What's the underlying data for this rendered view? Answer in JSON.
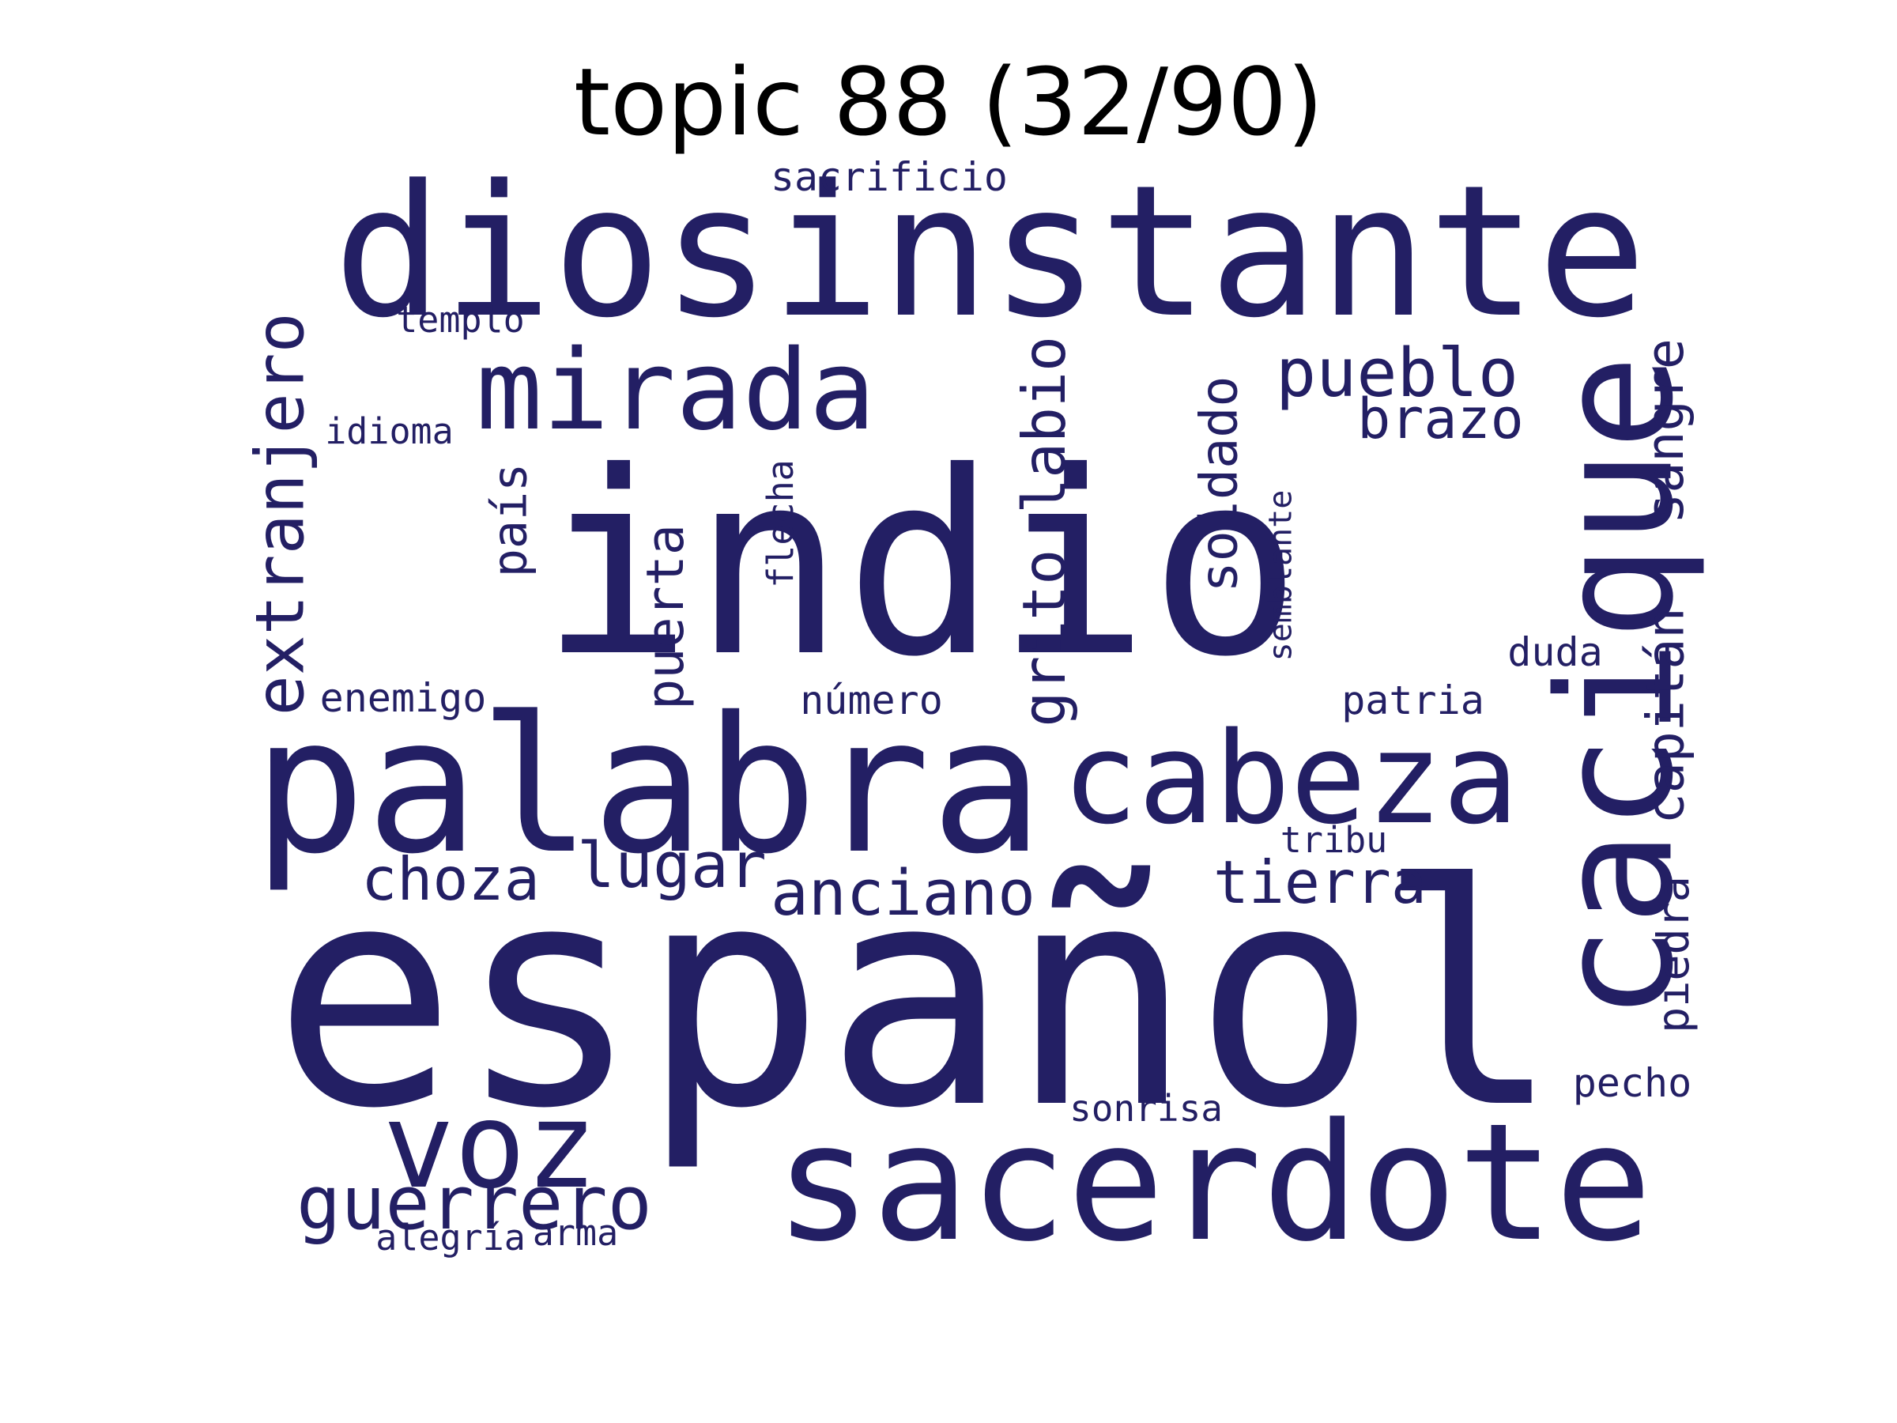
{
  "title": "topic 88 (32/90)",
  "word_color": "#231f64",
  "words": [
    {
      "text": "indio",
      "rotated": false
    },
    {
      "text": "español",
      "rotated": false
    },
    {
      "text": "diosinstante",
      "rotated": false
    },
    {
      "text": "palabra",
      "rotated": false
    },
    {
      "text": "cabeza",
      "rotated": false
    },
    {
      "text": "sacerdote",
      "rotated": false
    },
    {
      "text": "cacique",
      "rotated": true
    },
    {
      "text": "mirada",
      "rotated": false
    },
    {
      "text": "voz",
      "rotated": false
    },
    {
      "text": "guerrero",
      "rotated": false
    },
    {
      "text": "pueblo",
      "rotated": false
    },
    {
      "text": "brazo",
      "rotated": false
    },
    {
      "text": "lugar",
      "rotated": false
    },
    {
      "text": "choza",
      "rotated": false
    },
    {
      "text": "anciano",
      "rotated": false
    },
    {
      "text": "tierra",
      "rotated": false
    },
    {
      "text": "extranjero",
      "rotated": true
    },
    {
      "text": "soldado",
      "rotated": true
    },
    {
      "text": "grito labio",
      "rotated": true
    },
    {
      "text": "puerta",
      "rotated": true
    },
    {
      "text": "país",
      "rotated": true
    },
    {
      "text": "sangre",
      "rotated": true
    },
    {
      "text": "capitán",
      "rotated": true
    },
    {
      "text": "piedra",
      "rotated": true
    },
    {
      "text": "semblante",
      "rotated": true
    },
    {
      "text": "flecha",
      "rotated": true
    },
    {
      "text": "sacrificio",
      "rotated": false
    },
    {
      "text": "templo",
      "rotated": false
    },
    {
      "text": "idioma",
      "rotated": false
    },
    {
      "text": "enemigo",
      "rotated": false
    },
    {
      "text": "número",
      "rotated": false
    },
    {
      "text": "patria",
      "rotated": false
    },
    {
      "text": "duda",
      "rotated": false
    },
    {
      "text": "tribu",
      "rotated": false
    },
    {
      "text": "pecho",
      "rotated": false
    },
    {
      "text": "sonrisa",
      "rotated": false
    },
    {
      "text": "alegría",
      "rotated": false
    },
    {
      "text": "arma",
      "rotated": false
    }
  ]
}
